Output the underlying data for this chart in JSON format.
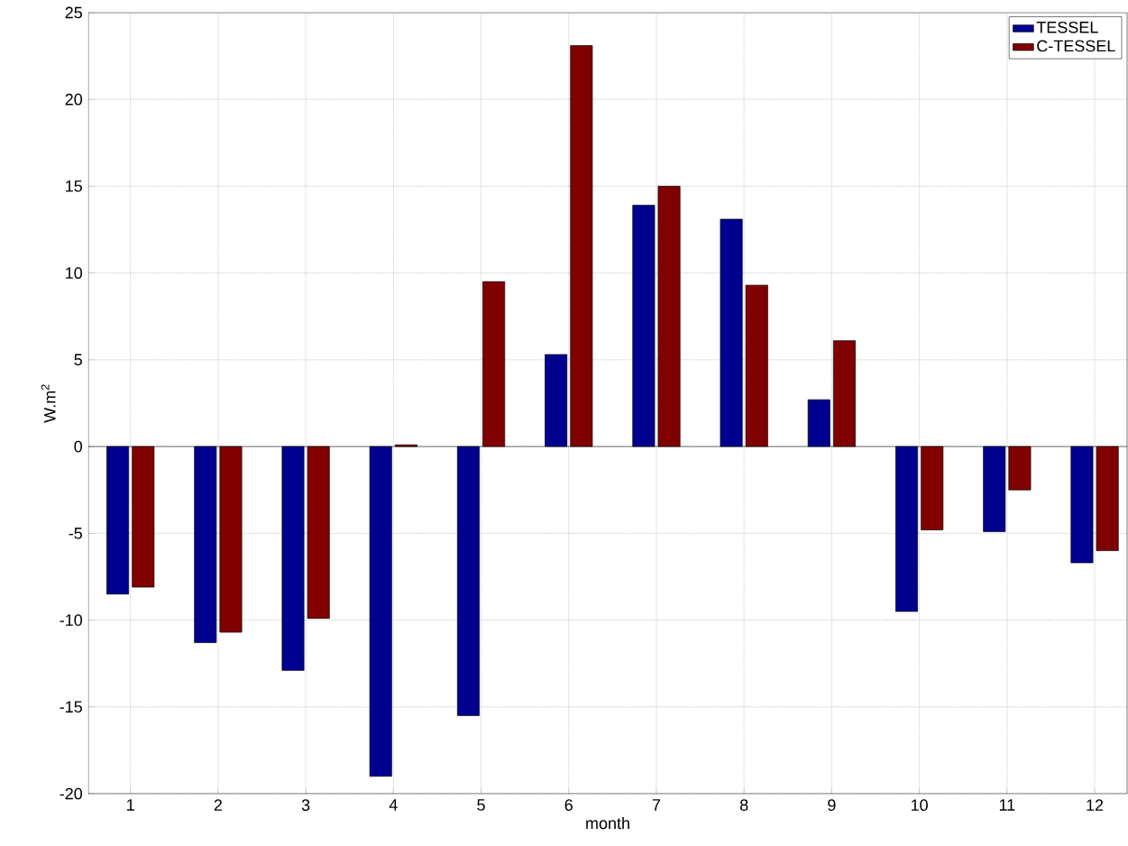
{
  "chart_data": {
    "type": "bar",
    "xlabel": "month",
    "ylabel": "W.m$^{2}$",
    "categories": [
      "1",
      "2",
      "3",
      "4",
      "5",
      "6",
      "7",
      "8",
      "9",
      "10",
      "11",
      "12"
    ],
    "series": [
      {
        "name": "TESSEL",
        "color": "#00008f",
        "values": [
          -8.5,
          -11.3,
          -12.9,
          -19.0,
          -15.5,
          5.3,
          13.9,
          13.1,
          2.7,
          -9.5,
          -4.9,
          -6.7
        ]
      },
      {
        "name": "C-TESSEL",
        "color": "#800000",
        "values": [
          -8.1,
          -10.7,
          -9.9,
          0.1,
          9.5,
          23.1,
          15.0,
          9.3,
          6.1,
          -4.8,
          -2.5,
          -6.0
        ]
      }
    ],
    "ylim": [
      -20,
      25
    ],
    "yticks": [
      -20,
      -15,
      -10,
      -5,
      0,
      5,
      10,
      15,
      20,
      25
    ],
    "grid": true,
    "legend": "top right"
  }
}
